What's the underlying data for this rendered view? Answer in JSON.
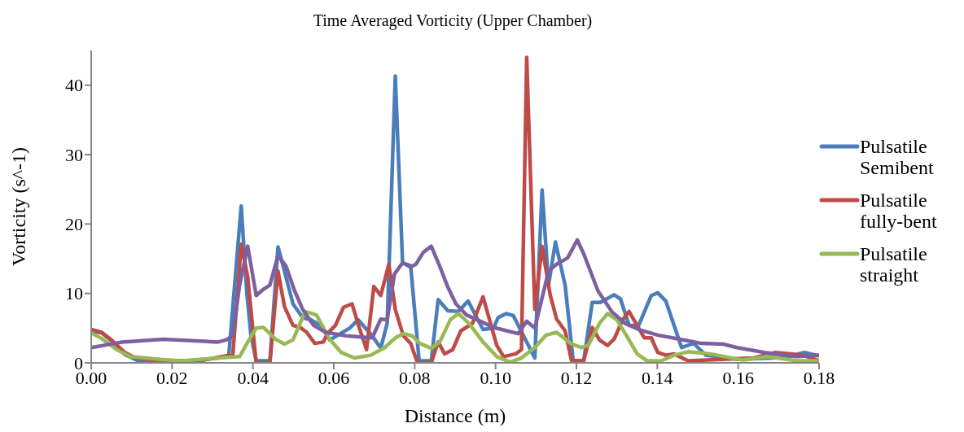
{
  "chart_data": {
    "type": "line",
    "title": "Time Averaged Vorticity (Upper Chamber)",
    "xlabel": "Distance (m)",
    "ylabel": "Vorticity (s^-1)",
    "xlim": [
      0,
      0.18
    ],
    "ylim": [
      0,
      45
    ],
    "xticks": [
      {
        "value": 0,
        "label": "0.00"
      },
      {
        "value": 0.02,
        "label": "0.02"
      },
      {
        "value": 0.04,
        "label": "0.04"
      },
      {
        "value": 0.06,
        "label": "0.06"
      },
      {
        "value": 0.08,
        "label": "0.08"
      },
      {
        "value": 0.1,
        "label": "0.10"
      },
      {
        "value": 0.12,
        "label": "0.12"
      },
      {
        "value": 0.14,
        "label": "0.14"
      },
      {
        "value": 0.16,
        "label": "0.16"
      },
      {
        "value": 0.18,
        "label": "0.18"
      }
    ],
    "yticks": [
      0,
      10,
      20,
      30,
      40
    ],
    "grid": false,
    "legend": "right",
    "marker": "none",
    "line_style": "solid",
    "series": [
      {
        "name": "Pulsatile Semibent",
        "color": "#4a7ebb",
        "x": [
          0,
          0.0026,
          0.005,
          0.0083,
          0.012,
          0.02,
          0.03,
          0.034,
          0.0371,
          0.0385,
          0.0395,
          0.0408,
          0.0442,
          0.0462,
          0.0478,
          0.0499,
          0.0523,
          0.0543,
          0.0568,
          0.059,
          0.0639,
          0.066,
          0.0695,
          0.0716,
          0.0732,
          0.0752,
          0.077,
          0.079,
          0.0811,
          0.0841,
          0.0858,
          0.0882,
          0.0908,
          0.0932,
          0.0969,
          0.0995,
          0.1006,
          0.1026,
          0.1044,
          0.1097,
          0.1115,
          0.1131,
          0.1148,
          0.1172,
          0.1192,
          0.1218,
          0.1239,
          0.1259,
          0.1293,
          0.1309,
          0.133,
          0.1354,
          0.1385,
          0.1401,
          0.1421,
          0.146,
          0.149,
          0.152,
          0.16,
          0.1718,
          0.1764,
          0.18
        ],
        "values": [
          4.6,
          4.3,
          3.2,
          1.2,
          0.2,
          0.1,
          0.6,
          0.9,
          22.6,
          10,
          4,
          0.3,
          0.3,
          16.7,
          13.2,
          8.5,
          6.5,
          6.2,
          5.4,
          3.3,
          5,
          6.2,
          3.9,
          2.1,
          5.7,
          41.3,
          14.4,
          14,
          0.3,
          0.3,
          9.1,
          7.5,
          7.4,
          8.9,
          4.8,
          5,
          6.5,
          7.1,
          6.8,
          0.7,
          24.9,
          11.2,
          17.4,
          11.2,
          0.3,
          0.3,
          8.7,
          8.7,
          9.8,
          9.2,
          5.4,
          5.4,
          9.7,
          10.1,
          8.9,
          2.2,
          2.8,
          1.1,
          0.5,
          0.8,
          1.5,
          1
        ]
      },
      {
        "name": "Pulsatile fully-bent",
        "color": "#be4b48",
        "x": [
          0,
          0.0026,
          0.005,
          0.0083,
          0.011,
          0.017,
          0.027,
          0.034,
          0.035,
          0.0371,
          0.0387,
          0.0408,
          0.0442,
          0.0462,
          0.0478,
          0.0499,
          0.0517,
          0.0533,
          0.0553,
          0.0574,
          0.0584,
          0.0604,
          0.0624,
          0.0645,
          0.0661,
          0.0681,
          0.0699,
          0.0716,
          0.0736,
          0.0752,
          0.0772,
          0.079,
          0.0807,
          0.0841,
          0.0858,
          0.0874,
          0.0894,
          0.0914,
          0.0943,
          0.0969,
          0.1003,
          0.102,
          0.105,
          0.1064,
          0.1077,
          0.1097,
          0.1115,
          0.1135,
          0.1151,
          0.1172,
          0.1188,
          0.1218,
          0.1239,
          0.1257,
          0.1277,
          0.1293,
          0.1314,
          0.133,
          0.1368,
          0.1385,
          0.1401,
          0.1421,
          0.1441,
          0.1476,
          0.1639,
          0.1692,
          0.176,
          0.18
        ],
        "values": [
          4.8,
          4.4,
          3.3,
          1.5,
          0.7,
          0.3,
          0.3,
          1.1,
          0.9,
          17.1,
          12.4,
          0,
          0,
          13.2,
          8.1,
          5.4,
          5.1,
          4.4,
          2.8,
          3,
          4.2,
          5.4,
          8,
          8.5,
          5.4,
          1.9,
          11,
          9.7,
          14.2,
          7.7,
          3.9,
          2.8,
          0,
          0,
          3,
          1.3,
          1.9,
          4.6,
          5.7,
          9.5,
          2.5,
          0.9,
          1.3,
          1.9,
          44,
          7.7,
          16.8,
          9.8,
          6.3,
          4.6,
          0.3,
          0.3,
          5.1,
          3.3,
          2.5,
          3.4,
          6.2,
          7.4,
          3.6,
          3.6,
          1.5,
          1.1,
          1.3,
          0.3,
          0.7,
          1.5,
          1.1,
          0.3
        ]
      },
      {
        "name": "Pulsatile straight",
        "color": "#98b954",
        "x": [
          0,
          0.0026,
          0.0063,
          0.0097,
          0.017,
          0.0225,
          0.0314,
          0.0367,
          0.0391,
          0.0408,
          0.0426,
          0.0456,
          0.0478,
          0.0499,
          0.0529,
          0.0557,
          0.059,
          0.0618,
          0.0651,
          0.0691,
          0.0726,
          0.0752,
          0.0772,
          0.0793,
          0.0813,
          0.0841,
          0.0862,
          0.0888,
          0.0908,
          0.0934,
          0.0969,
          0.1003,
          0.1036,
          0.1064,
          0.1097,
          0.1125,
          0.1151,
          0.1186,
          0.1212,
          0.1229,
          0.1257,
          0.1277,
          0.13,
          0.1324,
          0.135,
          0.1374,
          0.141,
          0.1441,
          0.1476,
          0.153,
          0.1612,
          0.1672,
          0.1746,
          0.18
        ],
        "values": [
          4.3,
          3.5,
          1.9,
          0.9,
          0.5,
          0.3,
          0.7,
          0.9,
          3.4,
          5,
          5.1,
          3.4,
          2.7,
          3.3,
          7.4,
          6.9,
          3.4,
          1.5,
          0.7,
          1.1,
          2.2,
          3.6,
          4.2,
          3.9,
          2.8,
          2.1,
          3,
          6.2,
          7.1,
          5.7,
          3,
          0.9,
          0.1,
          0.7,
          2.2,
          4,
          4.4,
          2.8,
          2.2,
          2.5,
          5.7,
          7.1,
          6.2,
          3.9,
          1.3,
          0.3,
          0.3,
          1.1,
          1.6,
          1.3,
          0.4,
          0.9,
          0.3,
          0.3
        ]
      },
      {
        "color": "#7d60a0",
        "x": [
          0,
          0.0077,
          0.0178,
          0.0314,
          0.0334,
          0.035,
          0.0367,
          0.0387,
          0.0408,
          0.0426,
          0.0442,
          0.0462,
          0.0482,
          0.0503,
          0.0523,
          0.055,
          0.058,
          0.063,
          0.0695,
          0.0716,
          0.0732,
          0.075,
          0.077,
          0.079,
          0.0803,
          0.0821,
          0.0841,
          0.0862,
          0.0882,
          0.0902,
          0.0928,
          0.0955,
          0.0995,
          0.1056,
          0.1077,
          0.1097,
          0.1131,
          0.1151,
          0.1178,
          0.1202,
          0.1218,
          0.1253,
          0.1287,
          0.132,
          0.1354,
          0.1401,
          0.1456,
          0.151,
          0.1563,
          0.1597,
          0.1665,
          0.1746,
          0.18
        ],
        "values": [
          2.2,
          3,
          3.4,
          3,
          3.3,
          3.9,
          11.2,
          16.8,
          9.7,
          10.6,
          11.2,
          15.5,
          13.9,
          10.4,
          7.7,
          5.4,
          4.4,
          3.9,
          3.6,
          6.3,
          6.2,
          12.8,
          14.4,
          13.8,
          14.2,
          15.9,
          16.8,
          13.9,
          10.9,
          8.5,
          6.9,
          6.2,
          5.1,
          4.2,
          6,
          5,
          13.2,
          14.2,
          15.1,
          17.7,
          15.7,
          10.4,
          7.4,
          5.7,
          4.8,
          4,
          3.4,
          2.8,
          2.7,
          2.2,
          1.5,
          0.9,
          1.1
        ]
      }
    ]
  }
}
